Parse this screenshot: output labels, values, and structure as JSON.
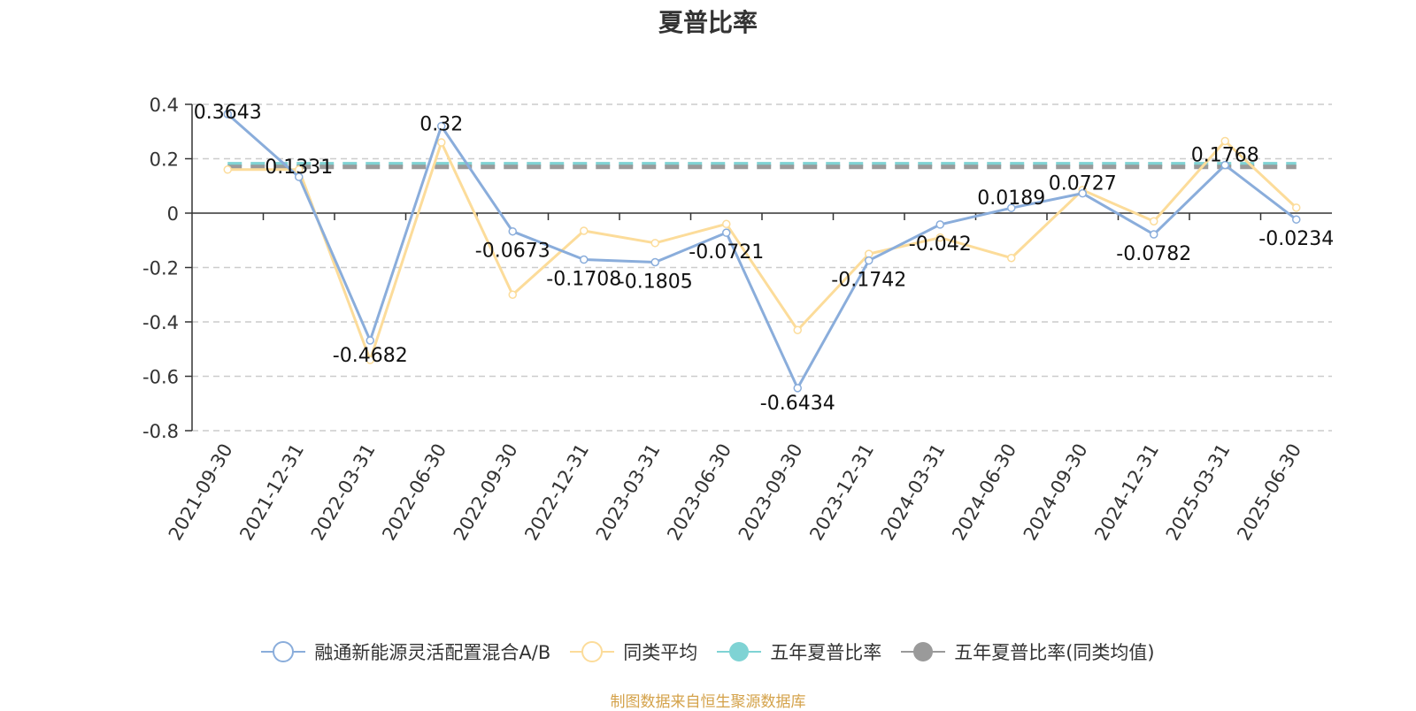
{
  "chart_data": {
    "type": "line",
    "title": "夏普比率",
    "categories": [
      "2021-09-30",
      "2021-12-31",
      "2022-03-31",
      "2022-06-30",
      "2022-09-30",
      "2022-12-31",
      "2023-03-31",
      "2023-06-30",
      "2023-09-30",
      "2023-12-31",
      "2024-03-31",
      "2024-06-30",
      "2024-09-30",
      "2024-12-31",
      "2025-03-31",
      "2025-06-30"
    ],
    "y_ticks": [
      "0.4",
      "0.2",
      "0",
      "-0.2",
      "-0.4",
      "-0.6",
      "-0.8"
    ],
    "ylim": [
      -0.8,
      0.4
    ],
    "grid": true,
    "legend_position": "bottom",
    "series": [
      {
        "name": "融通新能源灵活配置混合A/B",
        "color": "#8aaddb",
        "style": "solid-line",
        "values": [
          0.3643,
          0.1331,
          -0.4682,
          0.32,
          -0.0673,
          -0.1708,
          -0.1805,
          -0.0721,
          -0.6434,
          -0.1742,
          -0.042,
          0.0189,
          0.0727,
          -0.0782,
          0.1768,
          -0.0234
        ],
        "data_labels": [
          "0.3643",
          "0.1331",
          "-0.4682",
          "0.32",
          "-0.0673",
          "-0.1708",
          "-0.1805",
          "-0.0721",
          "-0.6434",
          "-0.1742",
          "-0.042",
          "0.0189",
          "0.0727",
          "-0.0782",
          "0.1768",
          "-0.0234"
        ]
      },
      {
        "name": "同类平均",
        "color": "#fcdc9a",
        "style": "solid-line",
        "values": [
          0.16,
          0.16,
          -0.54,
          0.26,
          -0.3,
          -0.065,
          -0.11,
          -0.04,
          -0.43,
          -0.15,
          -0.09,
          -0.165,
          0.085,
          -0.03,
          0.265,
          0.02
        ]
      },
      {
        "name": "五年夏普比率",
        "color": "#7fd3d4",
        "style": "dashed-reference",
        "value": 0.18
      },
      {
        "name": "五年夏普比率(同类均值)",
        "color": "#9a9a9a",
        "style": "dashed-reference",
        "value": 0.17
      }
    ],
    "source_note": "制图数据来自恒生聚源数据库"
  }
}
